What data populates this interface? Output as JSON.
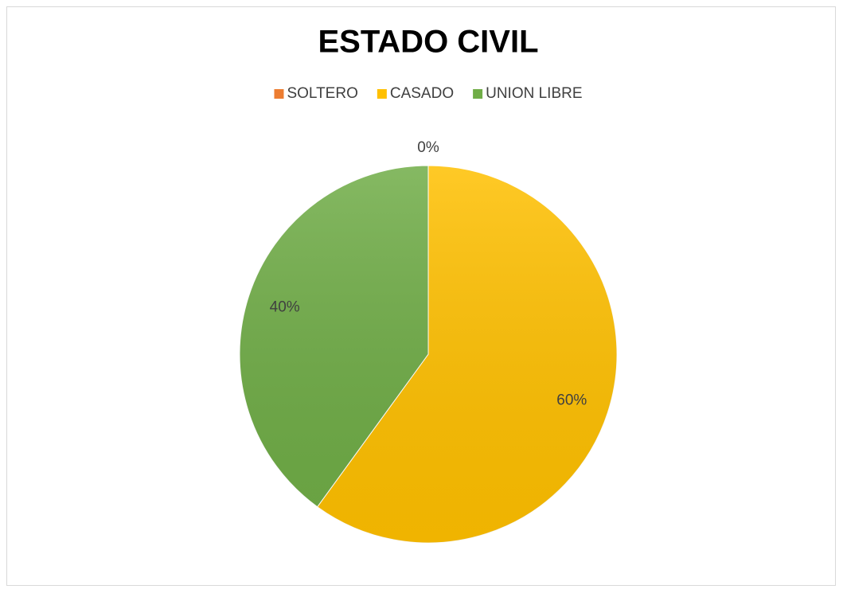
{
  "chart_data": {
    "type": "pie",
    "title": "ESTADO CIVIL",
    "categories": [
      "SOLTERO",
      "CASADO",
      "UNION LIBRE"
    ],
    "values": [
      0,
      60,
      40
    ],
    "value_labels": [
      "0%",
      "60%",
      "40%"
    ],
    "colors": [
      "#ed7d31",
      "#ffc000",
      "#70ad47"
    ],
    "legend": "top"
  }
}
